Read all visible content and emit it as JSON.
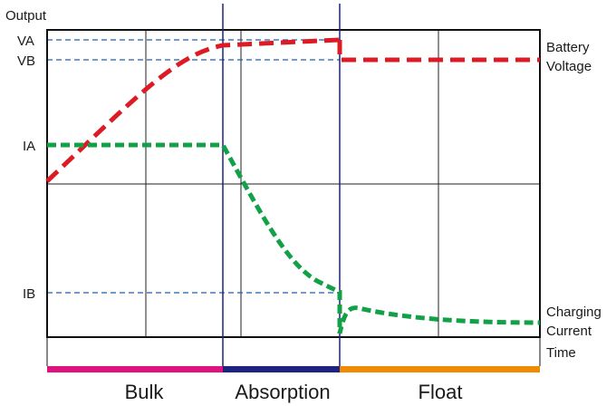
{
  "chart": {
    "y_axis_label": "Output",
    "x_axis_label": "Time",
    "level_labels": {
      "va": "VA",
      "vb": "VB",
      "ia": "IA",
      "ib": "IB"
    },
    "series_labels": {
      "voltage_line1": "Battery",
      "voltage_line2": "Voltage",
      "current_line1": "Charging",
      "current_line2": "Current"
    },
    "phases": [
      {
        "label": "Bulk",
        "color": "#e0137e"
      },
      {
        "label": "Absorption",
        "color": "#1e2280"
      },
      {
        "label": "Float",
        "color": "#f08a00"
      }
    ]
  },
  "colors": {
    "voltage": "#dd1b24",
    "current": "#12a146",
    "guide": "#1d5fad",
    "divider": "#1e2280",
    "frame": "#111111"
  },
  "chart_data": {
    "type": "line",
    "x_phases": [
      "Bulk",
      "Absorption",
      "Float"
    ],
    "y_levels": [
      "IB",
      "IA",
      "VB",
      "VA"
    ],
    "series": [
      {
        "name": "Battery Voltage",
        "color": "#dd1b24",
        "style": "dashed"
      },
      {
        "name": "Charging Current",
        "color": "#12a146",
        "style": "dashed"
      }
    ]
  }
}
